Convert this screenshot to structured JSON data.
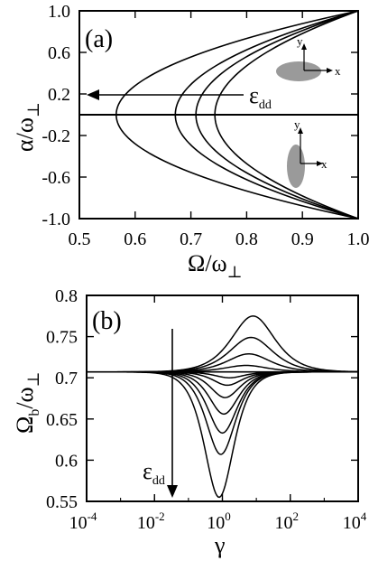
{
  "chart_data": [
    {
      "type": "line",
      "panel_label": "(a)",
      "xlabel": "Ω/ω",
      "xlabel_sub": "⊥",
      "ylabel": "α/ω",
      "ylabel_sub": "⊥",
      "xlim": [
        0.5,
        1.0
      ],
      "ylim": [
        -1.0,
        1.0
      ],
      "xticks": [
        {
          "v": 0.5,
          "label": "0.5"
        },
        {
          "v": 0.6,
          "label": "0.6"
        },
        {
          "v": 0.7,
          "label": "0.7"
        },
        {
          "v": 0.8,
          "label": "0.8"
        },
        {
          "v": 0.9,
          "label": "0.9"
        },
        {
          "v": 1.0,
          "label": "1.0"
        }
      ],
      "yticks": [
        {
          "v": 1.0,
          "label": "1.0"
        },
        {
          "v": 0.6,
          "label": "0.6"
        },
        {
          "v": 0.2,
          "label": "0.2"
        },
        {
          "v": -0.2,
          "label": "-0.2"
        },
        {
          "v": -0.6,
          "label": "-0.6"
        },
        {
          "v": -1.0,
          "label": "-1.0"
        }
      ],
      "series": [
        {
          "x_min": 0.566
        },
        {
          "x_min": 0.672
        },
        {
          "x_min": 0.709
        },
        {
          "x_min": 0.743
        }
      ],
      "horizontal_line": 0,
      "annotation": {
        "text": "ε",
        "sub": "dd",
        "direction": "decreasing Ω/ω⊥"
      },
      "insets": [
        {
          "shape": "ellipse elongated along x",
          "axes": [
            "x",
            "y"
          ]
        },
        {
          "shape": "ellipse elongated along y",
          "axes": [
            "x",
            "y"
          ]
        }
      ]
    },
    {
      "type": "line",
      "panel_label": "(b)",
      "xlabel": "γ",
      "ylabel": "Ω",
      "ylabel_sub": "b",
      "ylabel_tail": "/ω",
      "ylabel_tail_sub": "⊥",
      "xscale": "log",
      "xlim": [
        0.0001,
        10000
      ],
      "ylim": [
        0.55,
        0.8
      ],
      "xticks": [
        {
          "v": 0.0001,
          "base": "10",
          "exp": "-4"
        },
        {
          "v": 0.01,
          "base": "10",
          "exp": "-2"
        },
        {
          "v": 1,
          "base": "10",
          "exp": "0"
        },
        {
          "v": 100,
          "base": "10",
          "exp": "2"
        },
        {
          "v": 10000,
          "base": "10",
          "exp": "4"
        }
      ],
      "yticks": [
        {
          "v": 0.8,
          "label": "0.8"
        },
        {
          "v": 0.75,
          "label": "0.75"
        },
        {
          "v": 0.7,
          "label": "0.7"
        },
        {
          "v": 0.65,
          "label": "0.65"
        },
        {
          "v": 0.6,
          "label": "0.6"
        },
        {
          "v": 0.55,
          "label": "0.55"
        }
      ],
      "baseline": 0.7071,
      "series": [
        {
          "peak": 0.775,
          "center": 8
        },
        {
          "peak": 0.749,
          "center": 7
        },
        {
          "peak": 0.729,
          "center": 6
        },
        {
          "peak": 0.715,
          "center": 5
        },
        {
          "peak": 0.7,
          "center": 1.6
        },
        {
          "peak": 0.691,
          "center": 1.4
        },
        {
          "peak": 0.676,
          "center": 1.2
        },
        {
          "peak": 0.656,
          "center": 1.1
        },
        {
          "peak": 0.633,
          "center": 1.0
        },
        {
          "peak": 0.607,
          "center": 0.9
        },
        {
          "peak": 0.555,
          "center": 0.8
        }
      ],
      "annotation": {
        "text": "ε",
        "sub": "dd",
        "direction": "decreasing Ω_b/ω⊥"
      }
    }
  ]
}
